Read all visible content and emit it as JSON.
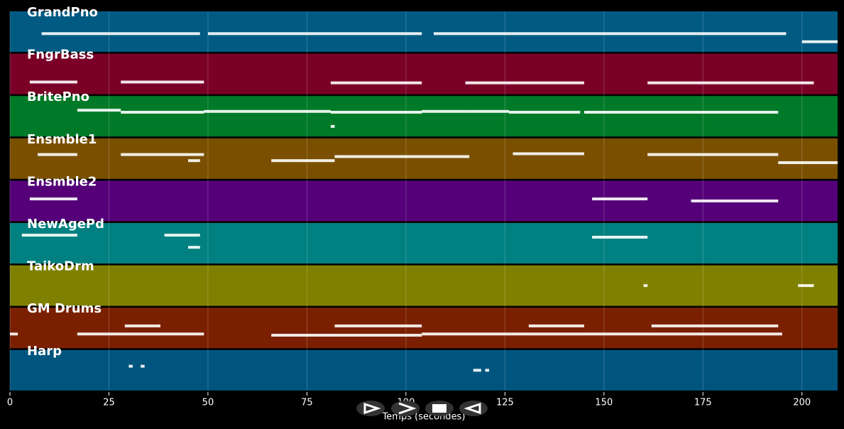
{
  "chart_data": {
    "type": "pianoroll",
    "xlabel": "Temps (secondes)",
    "xlim": [
      0,
      209
    ],
    "xticks": [
      0,
      25,
      50,
      75,
      100,
      125,
      150,
      175,
      200
    ],
    "ylim": [
      0,
      100
    ],
    "grid": true,
    "note_color": "#ffffff",
    "series": [
      {
        "name": "GrandPno",
        "color": "#005a82",
        "start": [
          8,
          50,
          107,
          200
        ],
        "end": [
          48,
          104,
          196,
          209
        ],
        "pitch": [
          45,
          45,
          45,
          25
        ]
      },
      {
        "name": "FngrBass",
        "color": "#7a0028",
        "start": [
          5,
          28,
          81,
          115,
          161
        ],
        "end": [
          17,
          49,
          104,
          145,
          203
        ],
        "pitch": [
          30,
          30,
          28,
          28,
          28
        ]
      },
      {
        "name": "BritePno",
        "color": "#007a28",
        "start": [
          17,
          28,
          49,
          81,
          104,
          116,
          126,
          145,
          81
        ],
        "end": [
          28,
          49,
          81,
          104,
          116,
          126,
          144,
          194,
          82
        ],
        "pitch": [
          65,
          60,
          62,
          60,
          62,
          62,
          60,
          60,
          25
        ]
      },
      {
        "name": "Ensmble1",
        "color": "#7a5000",
        "start": [
          7,
          28,
          45,
          66,
          72,
          82,
          104,
          127,
          161,
          194
        ],
        "end": [
          17,
          49,
          48,
          72,
          82,
          104,
          116,
          145,
          194,
          209
        ],
        "pitch": [
          60,
          60,
          45,
          45,
          45,
          55,
          55,
          62,
          60,
          40
        ]
      },
      {
        "name": "Ensmble2",
        "color": "#550078",
        "start": [
          5,
          147,
          172
        ],
        "end": [
          17,
          161,
          194
        ],
        "pitch": [
          55,
          55,
          50
        ]
      },
      {
        "name": "NewAgePd",
        "color": "#008080",
        "start": [
          3,
          39,
          45,
          147
        ],
        "end": [
          17,
          48,
          48,
          161
        ],
        "pitch": [
          70,
          70,
          40,
          65
        ]
      },
      {
        "name": "TaikoDrm",
        "color": "#808000",
        "start": [
          160,
          199
        ],
        "end": [
          161,
          203
        ],
        "pitch": [
          50,
          50
        ]
      },
      {
        "name": "GM Drums",
        "color": "#7a2000",
        "start": [
          0,
          17,
          29,
          66,
          82,
          104,
          131,
          146,
          162
        ],
        "end": [
          2,
          49,
          38,
          104,
          104,
          146,
          145,
          195,
          194
        ],
        "pitch": [
          35,
          35,
          55,
          32,
          55,
          35,
          55,
          35,
          55
        ]
      },
      {
        "name": "Harp",
        "color": "#00557f",
        "start": [
          30,
          33,
          117,
          120
        ],
        "end": [
          31,
          34,
          119,
          121
        ],
        "pitch": [
          60,
          60,
          50,
          50
        ]
      }
    ]
  }
}
